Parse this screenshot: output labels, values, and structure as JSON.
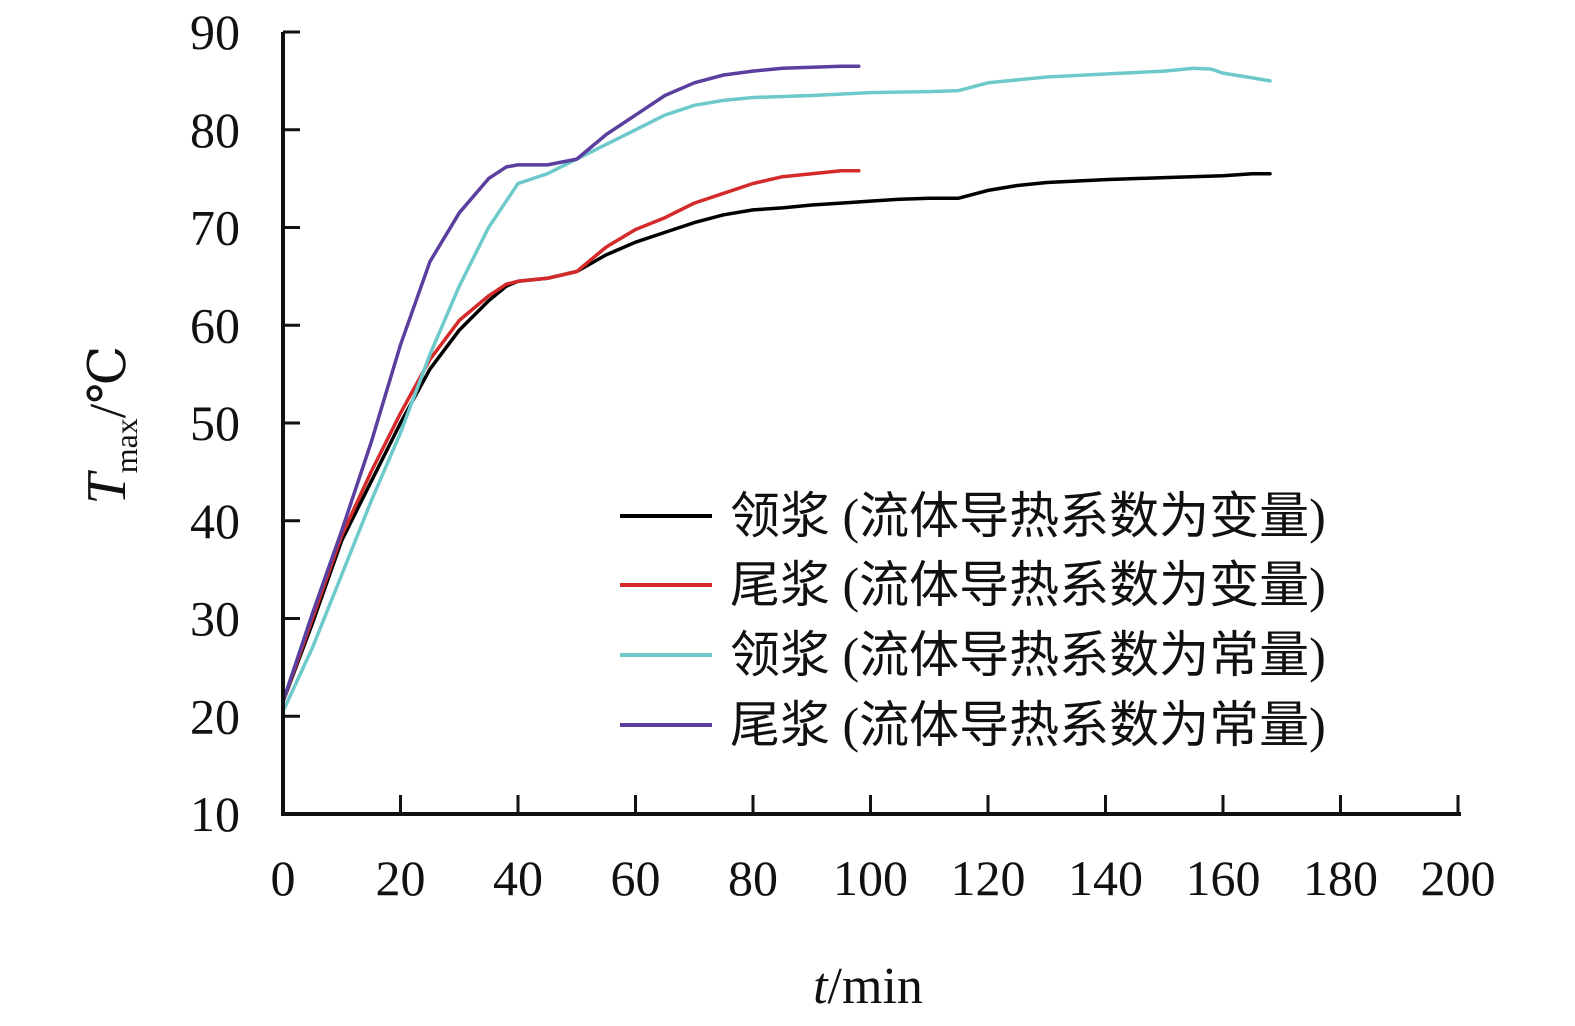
{
  "chart_data": {
    "type": "line",
    "xlabel_var": "t",
    "xlabel_unit": "/min",
    "ylabel_var": "T",
    "ylabel_sub": "max",
    "ylabel_unit": "/℃",
    "xlim": [
      0,
      200
    ],
    "ylim": [
      10,
      90
    ],
    "xticks": [
      0,
      20,
      40,
      60,
      80,
      100,
      120,
      140,
      160,
      180,
      200
    ],
    "yticks": [
      10,
      20,
      30,
      40,
      50,
      60,
      70,
      80,
      90
    ],
    "grid": false,
    "legend_position": "bottom-right",
    "series": [
      {
        "name": "领浆 (流体导热系数为变量)",
        "color": "#000000",
        "x": [
          0,
          5,
          10,
          15,
          20,
          25,
          30,
          35,
          38,
          40,
          45,
          50,
          55,
          60,
          65,
          70,
          75,
          80,
          85,
          90,
          95,
          100,
          105,
          110,
          115,
          120,
          125,
          130,
          140,
          150,
          160,
          165,
          168
        ],
        "y": [
          21.5,
          29.5,
          38,
          44,
          50,
          55.5,
          59.5,
          62.5,
          64,
          64.5,
          64.8,
          65.5,
          67.2,
          68.5,
          69.5,
          70.5,
          71.3,
          71.8,
          72,
          72.3,
          72.5,
          72.7,
          72.9,
          73,
          73,
          73.8,
          74.3,
          74.6,
          74.9,
          75.1,
          75.3,
          75.5,
          75.5
        ]
      },
      {
        "name": "尾浆 (流体导热系数为变量)",
        "color": "#d42a2a",
        "x": [
          0,
          5,
          10,
          15,
          20,
          25,
          30,
          35,
          38,
          40,
          45,
          50,
          55,
          60,
          65,
          70,
          75,
          80,
          85,
          90,
          95,
          98
        ],
        "y": [
          21.5,
          30,
          38.5,
          45,
          51,
          56.5,
          60.5,
          63,
          64.2,
          64.5,
          64.8,
          65.5,
          68,
          69.8,
          71,
          72.5,
          73.5,
          74.5,
          75.2,
          75.5,
          75.8,
          75.8
        ]
      },
      {
        "name": "领浆 (流体导热系数为常量)",
        "color": "#6ecaca",
        "x": [
          0,
          5,
          10,
          15,
          20,
          25,
          30,
          35,
          40,
          45,
          50,
          55,
          60,
          65,
          70,
          75,
          80,
          90,
          100,
          110,
          115,
          120,
          130,
          140,
          150,
          155,
          158,
          160,
          165,
          168
        ],
        "y": [
          20.5,
          27,
          34.5,
          42,
          49,
          57,
          64,
          70,
          74.5,
          75.5,
          77,
          78.5,
          80,
          81.5,
          82.5,
          83,
          83.3,
          83.5,
          83.8,
          83.9,
          84,
          84.8,
          85.4,
          85.7,
          86,
          86.3,
          86.2,
          85.8,
          85.3,
          85
        ]
      },
      {
        "name": "尾浆 (流体导热系数为常量)",
        "color": "#5a3f9e",
        "x": [
          0,
          5,
          10,
          15,
          20,
          25,
          30,
          35,
          38,
          40,
          45,
          50,
          55,
          60,
          65,
          70,
          75,
          80,
          85,
          90,
          95,
          98
        ],
        "y": [
          21.5,
          30.5,
          39,
          48,
          58,
          66.5,
          71.5,
          75,
          76.2,
          76.4,
          76.4,
          77,
          79.5,
          81.5,
          83.5,
          84.8,
          85.6,
          86,
          86.3,
          86.4,
          86.5,
          86.5
        ]
      }
    ]
  }
}
